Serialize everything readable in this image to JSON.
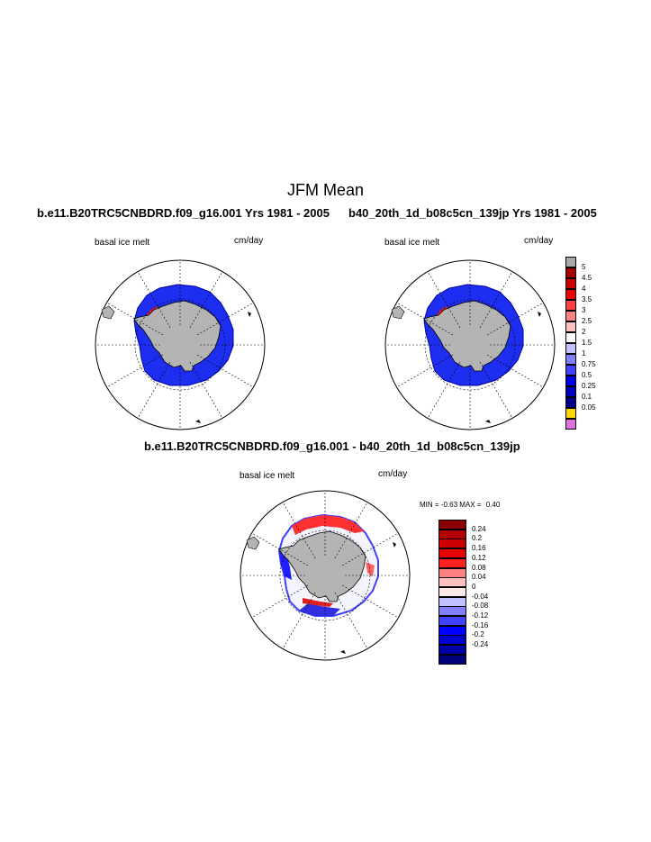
{
  "figure": {
    "title": "JFM Mean",
    "left_panel": {
      "case_title": "b.e11.B20TRC5CNBDRD.f09_g16.001  Yrs 1981 - 2005",
      "variable": "basal ice melt",
      "units": "cm/day"
    },
    "right_panel": {
      "case_title": "b40_20th_1d_b08c5cn_139jp  Yrs 1981 - 2005",
      "variable": "basal ice melt",
      "units": "cm/day"
    },
    "diff_panel": {
      "case_title": "b.e11.B20TRC5CNBDRD.f09_g16.001 - b40_20th_1d_b08c5cn_139jp",
      "variable": "basal ice melt",
      "units": "cm/day",
      "min_label": "MIN =",
      "min_value": "-0.63",
      "max_label": "MAX =",
      "max_value": "0.40"
    }
  },
  "colorbar_main": {
    "labels": [
      "5",
      "4.5",
      "4",
      "3.5",
      "3",
      "2.5",
      "2",
      "1.5",
      "1",
      "0.75",
      "0.5",
      "0.25",
      "0.1",
      "0.05"
    ],
    "colors": [
      "#a9a9a9",
      "#a60000",
      "#cc0000",
      "#ee0000",
      "#ff4040",
      "#ff8080",
      "#ffc0c0",
      "#ffffff",
      "#c0c0ff",
      "#8080ff",
      "#4040ff",
      "#0000ee",
      "#0000c0",
      "#00008b",
      "#ffd700",
      "#e070e0"
    ]
  },
  "colorbar_diff": {
    "labels": [
      "0.24",
      "0.2",
      "0.16",
      "0.12",
      "0.08",
      "0.04",
      "0",
      "-0.04",
      "-0.08",
      "-0.12",
      "-0.16",
      "-0.2",
      "-0.24"
    ],
    "colors": [
      "#8b0000",
      "#b30000",
      "#cc0000",
      "#e60000",
      "#ff2020",
      "#ff8080",
      "#ffc0c0",
      "#ffe8e8",
      "#c0c0ff",
      "#8080ff",
      "#4040ff",
      "#0000ff",
      "#0000d0",
      "#0000a8",
      "#00007a"
    ]
  }
}
